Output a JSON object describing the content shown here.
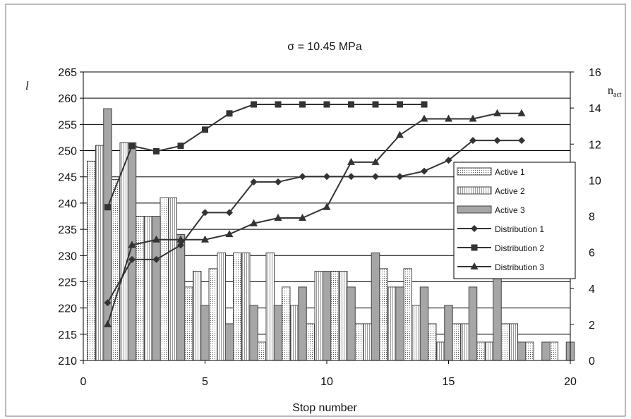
{
  "chart_data": {
    "type": "bar",
    "title": "σ = 10.45 MPa",
    "xlabel": "Stop number",
    "ylabel": "l",
    "y2label_main": "n",
    "y2label_sub": "act",
    "xlim": [
      0,
      20
    ],
    "xticks": [
      0,
      5,
      10,
      15,
      20
    ],
    "ylim": [
      210,
      265
    ],
    "yticks": [
      210,
      215,
      220,
      225,
      230,
      235,
      240,
      245,
      250,
      255,
      260,
      265
    ],
    "y2lim": [
      0,
      16
    ],
    "y2ticks": [
      0,
      2,
      4,
      6,
      8,
      10,
      12,
      14,
      16
    ],
    "grid": true,
    "legend_position": "right",
    "bar_series": [
      {
        "name": "Active 1",
        "axis": "left",
        "x": [
          0.5,
          1.5,
          2.5,
          3.5,
          4.5,
          5.5,
          6.5,
          7.5,
          8.5,
          9.5,
          10.5,
          11.5,
          12.5,
          13.5,
          14.5,
          15.5,
          16.5,
          17.5,
          18.5,
          19.5
        ],
        "values": [
          248,
          244.5,
          237.5,
          241,
          224,
          227.5,
          230.5,
          213.5,
          224,
          217,
          227,
          217,
          227.5,
          227.5,
          217,
          217,
          213.5,
          217,
          213.5,
          213.5
        ]
      },
      {
        "name": "Active 2",
        "axis": "left",
        "x": [
          0.5,
          1.5,
          2.5,
          3.5,
          4.5,
          5.5,
          6.5,
          7.5,
          8.5,
          9.5,
          10.5,
          11.5,
          12.5,
          13.5,
          14.5,
          15.5,
          16.5,
          17.5
        ],
        "values": [
          251,
          251.5,
          237.5,
          241,
          227,
          230.5,
          230.5,
          230.5,
          220.5,
          227,
          227,
          217,
          224,
          220.5,
          213.5,
          217,
          213.5,
          217
        ]
      },
      {
        "name": "Active 3",
        "axis": "left",
        "x": [
          1,
          2,
          3,
          4,
          5,
          6,
          7,
          8,
          9,
          10,
          11,
          12,
          13,
          14,
          15,
          16,
          17,
          18,
          19,
          20
        ],
        "values": [
          258,
          251.5,
          237.5,
          234,
          220.5,
          217,
          220.5,
          220.5,
          224,
          227,
          224,
          230.5,
          224,
          224,
          220.5,
          224,
          227,
          213.5,
          213.5,
          213.5
        ]
      }
    ],
    "line_series": [
      {
        "name": "Distribution 1",
        "axis": "right",
        "marker": "diamond",
        "x": [
          1,
          2,
          3,
          4,
          5,
          6,
          7,
          8,
          9,
          10,
          11,
          12,
          13,
          14,
          15,
          16,
          17,
          18
        ],
        "values": [
          3.2,
          5.6,
          5.6,
          6.4,
          8.2,
          8.2,
          9.9,
          9.9,
          10.2,
          10.2,
          10.2,
          10.2,
          10.2,
          10.5,
          11.1,
          12.2,
          12.2,
          12.2
        ]
      },
      {
        "name": "Distribution 2",
        "axis": "right",
        "marker": "square",
        "x": [
          1,
          2,
          3,
          4,
          5,
          6,
          7,
          8,
          9,
          10,
          11,
          12,
          13,
          14
        ],
        "values": [
          8.5,
          11.9,
          11.6,
          11.9,
          12.8,
          13.7,
          14.2,
          14.2,
          14.2,
          14.2,
          14.2,
          14.2,
          14.2,
          14.2
        ]
      },
      {
        "name": "Distribution 3",
        "axis": "right",
        "marker": "triangle",
        "x": [
          1,
          2,
          3,
          4,
          5,
          6,
          7,
          8,
          9,
          10,
          11,
          12,
          13,
          14,
          15,
          16,
          17,
          18
        ],
        "values": [
          2.0,
          6.4,
          6.7,
          6.7,
          6.7,
          7.0,
          7.6,
          7.9,
          7.9,
          8.5,
          11.0,
          11.0,
          12.5,
          13.4,
          13.4,
          13.4,
          13.7,
          13.7
        ]
      }
    ],
    "colors": {
      "plot_bg": "#ffffff",
      "grid": "#000000",
      "active3_fill": "#a6a6a6",
      "line": "#333333"
    }
  }
}
